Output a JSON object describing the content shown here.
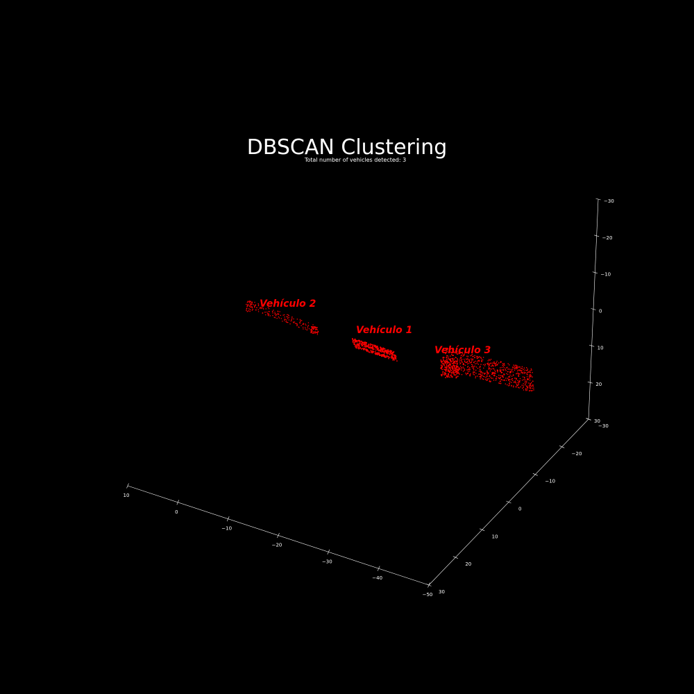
{
  "chart_data": {
    "type": "scatter",
    "title": "DBSCAN Clustering",
    "subtitle": "Total number of vehicles detected: 3",
    "xlabel": "",
    "ylabel": "",
    "zlabel": "",
    "xlim": [
      10,
      -50
    ],
    "ylim": [
      30,
      -30
    ],
    "zlim": [
      30,
      -30
    ],
    "x_ticks": [
      "10",
      "0",
      "−10",
      "−20",
      "−30",
      "−40",
      "−50"
    ],
    "y_ticks": [
      "30",
      "20",
      "10",
      "0",
      "−10",
      "−20",
      "−30"
    ],
    "z_ticks": [
      "30",
      "20",
      "10",
      "0",
      "−10",
      "−20",
      "−30"
    ],
    "grid": false,
    "background": "#000000",
    "point_color": "#ff0000",
    "clusters": [
      {
        "name": "Vehículo 1",
        "color": "#ff0000"
      },
      {
        "name": "Vehículo 2",
        "color": "#ff0000"
      },
      {
        "name": "Vehículo 3",
        "color": "#ff0000"
      }
    ],
    "vehicle_count": 3
  }
}
